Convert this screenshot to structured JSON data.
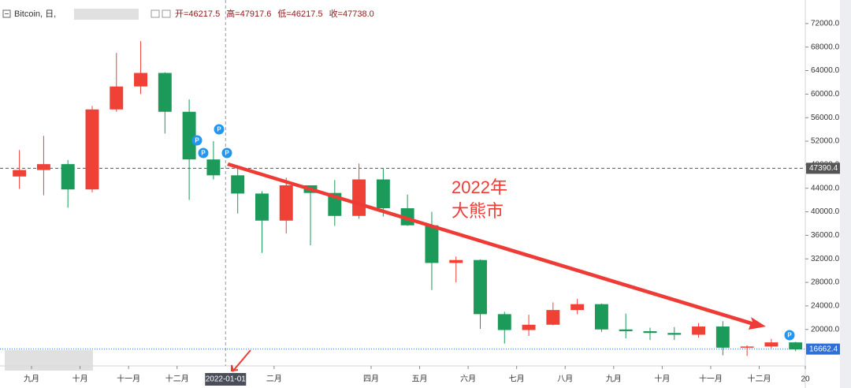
{
  "chart_data": {
    "type": "candlestick",
    "title": "Bitcoin, 日,",
    "ohlc_readout": [
      "开=46217.5",
      "高=47917.6",
      "低=46217.5",
      "收=47738.0"
    ],
    "annotation": [
      "2022年",
      "大熊市"
    ],
    "event_marker": "P",
    "x": [
      -0.5,
      0.5,
      1.5,
      2.5,
      3.5,
      4.5,
      5.5,
      6.5,
      7.5,
      8.5,
      9.5,
      10.5,
      11.5,
      12.5,
      13.5,
      14.5,
      15.5,
      16.5,
      17.5,
      18.5,
      19.5,
      20.5,
      21.5,
      22.5,
      23.5,
      24.5,
      25.5,
      26.5,
      27.5,
      28.5,
      29.5,
      30.5,
      31.5
    ],
    "open": [
      46000,
      47100,
      48100,
      43800,
      57400,
      61300,
      63600,
      57000,
      48900,
      46200,
      43100,
      38500,
      44500,
      43200,
      39300,
      45500,
      40600,
      37700,
      31300,
      31800,
      22600,
      19900,
      20800,
      23300,
      24300,
      20000,
      19700,
      19400,
      19100,
      20500,
      16900,
      17100,
      17800
    ],
    "high": [
      50500,
      52900,
      48800,
      58000,
      67000,
      69000,
      63700,
      59100,
      52000,
      47900,
      43500,
      45800,
      44500,
      45400,
      48200,
      47400,
      42900,
      40000,
      32400,
      31900,
      23000,
      22500,
      24600,
      25200,
      24400,
      22700,
      20300,
      20400,
      21100,
      21400,
      17300,
      18400,
      17900
    ],
    "low": [
      43900,
      42800,
      40700,
      43300,
      57000,
      60000,
      53300,
      42000,
      45500,
      39700,
      33000,
      36300,
      34300,
      37600,
      38800,
      39200,
      37600,
      26700,
      28000,
      20100,
      17600,
      18900,
      20700,
      22600,
      19600,
      18500,
      18200,
      18200,
      18600,
      15600,
      15500,
      16800,
      16300
    ],
    "close": [
      47100,
      48100,
      43800,
      57400,
      61300,
      63600,
      57000,
      48900,
      46200,
      43100,
      38500,
      44500,
      43200,
      39300,
      45500,
      40600,
      37700,
      31300,
      31800,
      22600,
      19900,
      20800,
      23300,
      24300,
      20000,
      19700,
      19400,
      19100,
      20500,
      16900,
      17100,
      17800,
      16600
    ],
    "up_color": "#ef4136",
    "down_color": "#1b9a5a",
    "xlim": [
      -1.3,
      31.9
    ],
    "xticks": [
      {
        "value": 0,
        "label": "九月"
      },
      {
        "value": 2,
        "label": "十月"
      },
      {
        "value": 4,
        "label": "十一月"
      },
      {
        "value": 6,
        "label": "十二月"
      },
      {
        "value": 8,
        "label": "2022-01-01"
      },
      {
        "value": 10,
        "label": "二月"
      },
      {
        "value": 14,
        "label": "四月"
      },
      {
        "value": 16,
        "label": "五月"
      },
      {
        "value": 18,
        "label": "六月"
      },
      {
        "value": 20,
        "label": "七月"
      },
      {
        "value": 22,
        "label": "八月"
      },
      {
        "value": 24,
        "label": "九月"
      },
      {
        "value": 26,
        "label": "十月"
      },
      {
        "value": 28,
        "label": "十一月"
      },
      {
        "value": 30,
        "label": "十二月"
      },
      {
        "value": 31.9,
        "label": "20"
      }
    ],
    "ylim": [
      13800,
      76000
    ],
    "yticks": [
      {
        "value": 20000,
        "label": "20000.0"
      },
      {
        "value": 24000,
        "label": "24000.0"
      },
      {
        "value": 28000,
        "label": "28000.0"
      },
      {
        "value": 32000,
        "label": "32000.0"
      },
      {
        "value": 36000,
        "label": "36000.0"
      },
      {
        "value": 40000,
        "label": "40000.0"
      },
      {
        "value": 44000,
        "label": "44000.0"
      },
      {
        "value": 48000,
        "label": "48000.0"
      },
      {
        "value": 52000,
        "label": "52000.0"
      },
      {
        "value": 56000,
        "label": "56000.0"
      },
      {
        "value": 60000,
        "label": "60000.0"
      },
      {
        "value": 64000,
        "label": "64000.0"
      },
      {
        "value": 68000,
        "label": "68000.0"
      },
      {
        "value": 72000,
        "label": "72000.0"
      }
    ],
    "price_lines": [
      {
        "value": 47390.4,
        "color": "#555555"
      },
      {
        "value": 16662.4,
        "color": "#2f6fd6"
      }
    ],
    "crosshair_x": {
      "value": 8,
      "label": "2022-01-01"
    }
  }
}
